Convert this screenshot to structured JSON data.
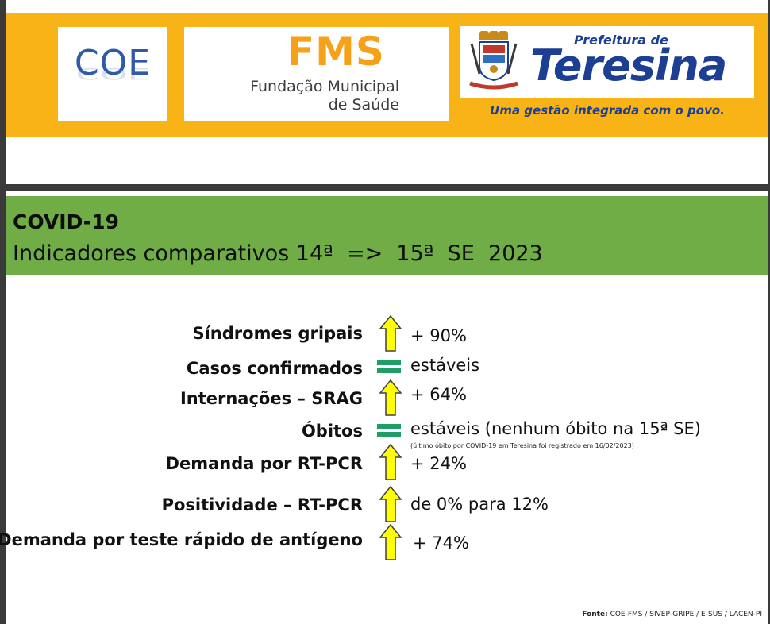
{
  "header": {
    "coe_logo_text": "COE",
    "fms_logo": {
      "acronym": "FMS",
      "line1": "Fundação Municipal",
      "line2": "de Saúde"
    },
    "prefeitura_logo": {
      "small": "Prefeitura de",
      "big": "Teresina",
      "slogan": "Uma gestão integrada com o povo."
    },
    "colors": {
      "band": "#f8b316",
      "navy": "#1c3f94",
      "fms_orange": "#f5a21a"
    }
  },
  "slide": {
    "title": "COVID-19",
    "subtitle": "Indicadores comparativos 14ª  =>  15ª  SE  2023",
    "title_band_color": "#70ad47"
  },
  "indicators": [
    {
      "label": "Síndromes gripais",
      "icon": "up-arrow-icon",
      "value": "+ 90%"
    },
    {
      "label": "Casos confirmados",
      "icon": "equals-icon",
      "value": "estáveis"
    },
    {
      "label": "Internações – SRAG",
      "icon": "up-arrow-icon",
      "value": "+ 64%"
    },
    {
      "label": "Óbitos",
      "icon": "equals-icon",
      "value": "estáveis (nenhum óbito na 15ª SE)",
      "note": "(último óbito por COVID-19 em Teresina foi registrado em 16/02/2023)"
    },
    {
      "label": "Demanda por RT-PCR",
      "icon": "up-arrow-icon",
      "value": "+ 24%"
    },
    {
      "label": "Positividade – RT-PCR",
      "icon": "up-arrow-icon",
      "value": "de 0% para 12%"
    },
    {
      "label": "Demanda por teste rápido de antígeno",
      "icon": "up-arrow-icon",
      "value": "+ 74%"
    }
  ],
  "icon_colors": {
    "arrow_fill": "#ffff00",
    "equals": "#1e9e66"
  },
  "source": {
    "label": "Fonte:",
    "text": " COE-FMS / SIVEP-GRIPE / E-SUS / LACEN-PI"
  }
}
